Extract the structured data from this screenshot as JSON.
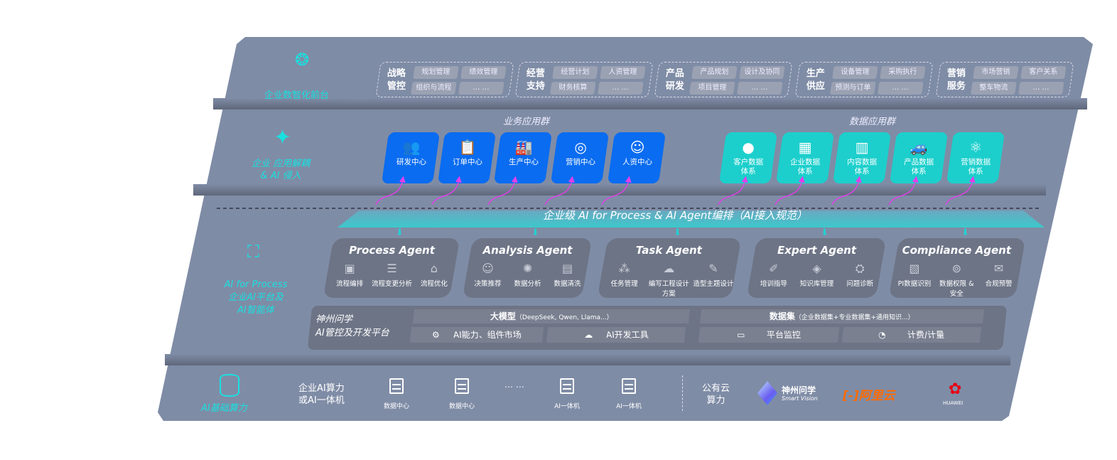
{
  "frontend": {
    "label": "企业数智化前台",
    "icon": "brain-icon",
    "groups": [
      {
        "title": [
          "战略",
          "管控"
        ],
        "items": [
          "规划管理",
          "绩效管理",
          "组织与流程",
          "… …"
        ]
      },
      {
        "title": [
          "经营",
          "支持"
        ],
        "items": [
          "经营计划",
          "人资管理",
          "财务核算",
          "… …"
        ]
      },
      {
        "title": [
          "产品",
          "研发"
        ],
        "items": [
          "产品规划",
          "设计及协同",
          "项目管理",
          "… …"
        ]
      },
      {
        "title": [
          "生产",
          "供应"
        ],
        "items": [
          "设备管理",
          "采购执行",
          "预测与订单",
          "… …"
        ]
      },
      {
        "title": [
          "营销",
          "服务"
        ],
        "items": [
          "市场营销",
          "客户关系",
          "整车物流",
          "… …"
        ]
      }
    ]
  },
  "apps": {
    "label": [
      "企业 应用解耦",
      "& AI 侵入"
    ],
    "icon": "molecule-icon",
    "business": {
      "title": "业务应用群",
      "color": "#0a6cf0",
      "tiles": [
        {
          "label": "研发中心",
          "icon": "team-icon"
        },
        {
          "label": "订单中心",
          "icon": "clipboard-icon"
        },
        {
          "label": "生产中心",
          "icon": "factory-icon"
        },
        {
          "label": "营销中心",
          "icon": "target-icon"
        },
        {
          "label": "人资中心",
          "icon": "people-icon"
        }
      ]
    },
    "data": {
      "title": "数据应用群",
      "color": "#1ccfcc",
      "tiles": [
        {
          "label": [
            "客户数据",
            "体系"
          ],
          "icon": "user-icon"
        },
        {
          "label": [
            "企业数据",
            "体系"
          ],
          "icon": "building-icon"
        },
        {
          "label": [
            "内容数据",
            "体系"
          ],
          "icon": "books-icon"
        },
        {
          "label": [
            "产品数据",
            "体系"
          ],
          "icon": "car-icon"
        },
        {
          "label": [
            "营销数据",
            "体系"
          ],
          "icon": "atom-icon"
        }
      ]
    }
  },
  "aiprocess": {
    "label": [
      "AI for Process",
      "企业AI平台及",
      "AI智能体"
    ],
    "icon": "face-scan-icon",
    "banner": "企业级 AI for Process & AI Agent编排（AI接入规范）",
    "agents": [
      {
        "title": "Process Agent",
        "features": [
          "流程编排",
          "流程变更分析",
          "流程优化"
        ]
      },
      {
        "title": "Analysis Agent",
        "features": [
          "决策推荐",
          "数据分析",
          "数据清洗"
        ]
      },
      {
        "title": "Task Agent",
        "features": [
          "任务管理",
          "编写工程设计方案",
          "造型主题设计"
        ]
      },
      {
        "title": "Expert Agent",
        "features": [
          "培训指导",
          "知识库管理",
          "问题诊断"
        ]
      },
      {
        "title": "Compliance Agent",
        "features": [
          "PI数据识别",
          "数据权限 & 安全",
          "合规预警"
        ]
      }
    ],
    "platform": {
      "name": [
        "神州问学",
        "AI管控及开发平台"
      ],
      "model": "大模型",
      "model_note": "（DeepSeek, Qwen, Llama...）",
      "dataset": "数据集",
      "dataset_note": "（企业数据集+专业数据集+通用知识...）",
      "cells": [
        "AI能力、组件市场",
        "AI开发工具",
        "平台监控",
        "计费/计量"
      ]
    }
  },
  "infra": {
    "label": "AI基础算力",
    "icon": "database-icon",
    "private": [
      "企业AI算力",
      "或AI一体机"
    ],
    "servers": [
      "数据中心",
      "数据中心",
      "AI一体机",
      "AI一体机"
    ],
    "ellipsis": "… …",
    "public": [
      "公有云",
      "算力"
    ],
    "vendors": [
      {
        "name": "神州问学",
        "sub": "Smart Vision"
      },
      {
        "name": "阿里云",
        "mark": "[-]",
        "color": "#ff6a00"
      },
      {
        "name": "HUAWEI",
        "color": "#e60012"
      }
    ]
  }
}
